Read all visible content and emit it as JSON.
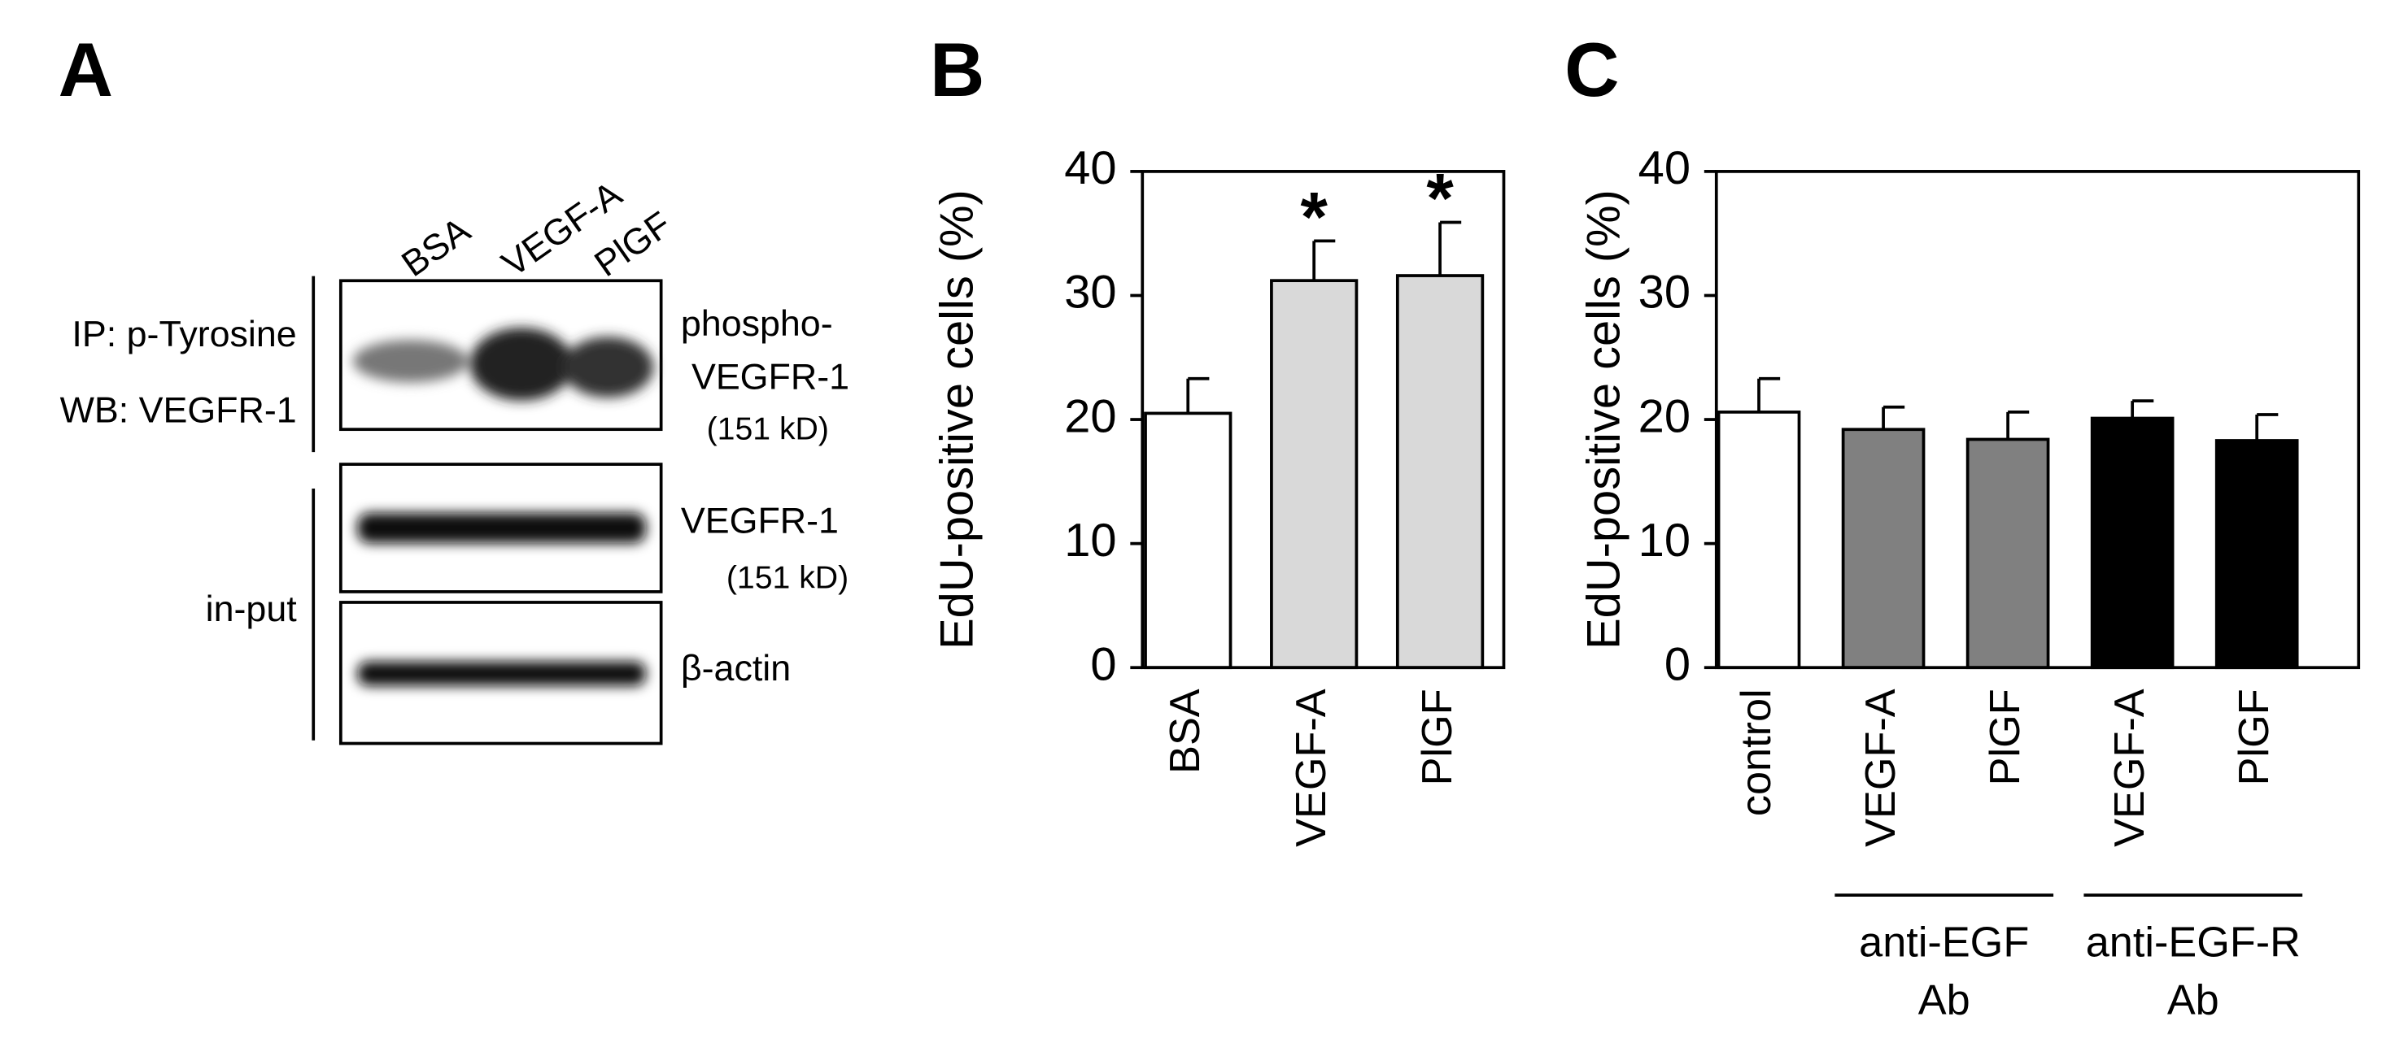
{
  "panel_labels": [
    "A",
    "B",
    "C"
  ],
  "blot": {
    "lanes": [
      "BSA",
      "VEGF-A",
      "PlGF"
    ],
    "left_labels": [
      "IP: p-Tyrosine",
      "WB: VEGFR-1",
      "in-put"
    ],
    "right_labels": [
      "phospho-",
      "VEGFR-1",
      "(151 kD)",
      "VEGFR-1",
      "(151 kD)",
      "β-actin"
    ]
  },
  "chart_data": [
    {
      "type": "bar",
      "y_label": "EdU-positive cells (%)",
      "categories": [
        "BSA",
        "VEGF-A",
        "PlGF"
      ],
      "values": [
        20.5,
        31.2,
        31.6
      ],
      "errors": [
        2.8,
        3.2,
        4.3
      ],
      "colors": [
        "#ffffff",
        "#d9d9d9",
        "#d9d9d9"
      ],
      "markers": [
        null,
        "*",
        "*"
      ],
      "ylim": [
        0,
        40
      ],
      "yticks": [
        0,
        10,
        20,
        30,
        40
      ]
    },
    {
      "type": "bar",
      "y_label": "EdU-positive cells (%)",
      "categories": [
        "control",
        "VEGF-A",
        "PlGF",
        "VEGF-A",
        "PlGF"
      ],
      "values": [
        20.6,
        19.2,
        18.4,
        20.1,
        18.3
      ],
      "errors": [
        2.7,
        1.8,
        2.2,
        1.4,
        2.1
      ],
      "colors": [
        "#ffffff",
        "#808080",
        "#808080",
        "#000000",
        "#000000"
      ],
      "groups": [
        [
          "anti-EGF",
          "Ab"
        ],
        [
          "anti-EGF-R",
          "Ab"
        ]
      ],
      "ylim": [
        0,
        40
      ],
      "yticks": [
        0,
        10,
        20,
        30,
        40
      ]
    }
  ]
}
